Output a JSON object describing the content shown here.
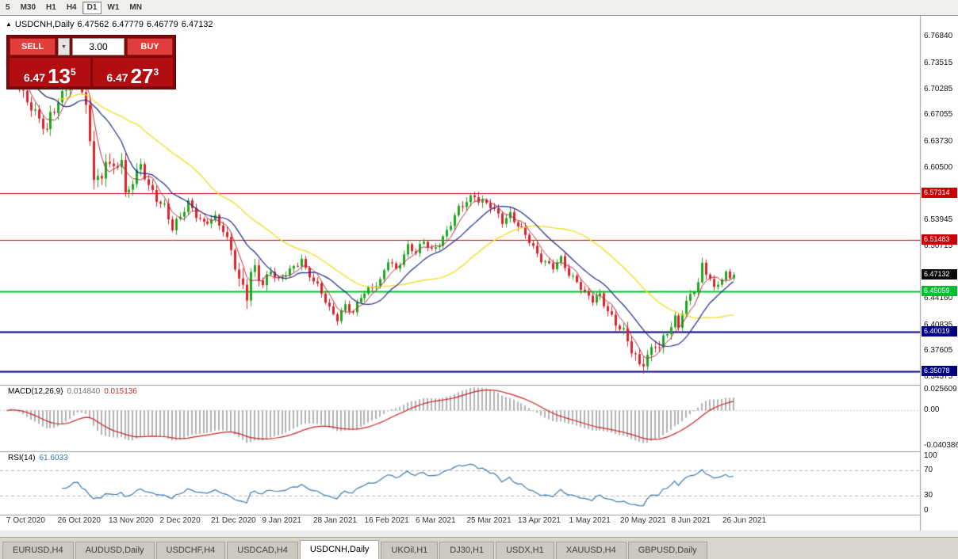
{
  "toolbar": {
    "timeframes": [
      {
        "label": "5",
        "active": false
      },
      {
        "label": "M30",
        "active": false
      },
      {
        "label": "H1",
        "active": false
      },
      {
        "label": "H4",
        "active": false
      },
      {
        "label": "D1",
        "active": true
      },
      {
        "label": "W1",
        "active": false
      },
      {
        "label": "MN",
        "active": false
      }
    ]
  },
  "chart_header": {
    "collapse_icon": "▲",
    "symbol": "USDCNH,Daily",
    "open": "6.47562",
    "high": "6.47779",
    "low": "6.46779",
    "close": "6.47132"
  },
  "trade_panel": {
    "sell_label": "SELL",
    "buy_label": "BUY",
    "volume": "3.00",
    "caret_icon": "▼",
    "sell_price": {
      "big": "6.47",
      "pips": "13",
      "pip_sup": "5"
    },
    "buy_price": {
      "big": "6.47",
      "pips": "27",
      "pip_sup": "3"
    }
  },
  "indicators": {
    "macd": {
      "name": "MACD(12,26,9)",
      "value_main": "0.014840",
      "value_signal": "0.015136",
      "axis_ticks": [
        "0.025609",
        "0.00",
        "-0.040386"
      ],
      "axis_values": [
        0.025609,
        0,
        -0.040386
      ]
    },
    "rsi": {
      "name": "RSI(14)",
      "value": "61.6033",
      "axis_ticks": [
        "100",
        "70",
        "30",
        "0"
      ],
      "axis_values": [
        100,
        70,
        30,
        0
      ],
      "dashed_levels": [
        70,
        30
      ]
    }
  },
  "price_axis": {
    "range": {
      "top": 6.7727,
      "bottom": 6.3359
    },
    "ticks": [
      "6.76840",
      "6.73515",
      "6.70285",
      "6.67055",
      "6.63730",
      "6.60500",
      "6.57270",
      "6.53945",
      "6.50715",
      "6.44160",
      "6.40835",
      "6.37605",
      "6.34375"
    ],
    "current_price": {
      "label": "6.47132",
      "value": 6.47132,
      "bg": "#0a0a0a"
    },
    "levels": [
      {
        "label": "6.57314",
        "value": 6.57314,
        "color": "#cc0000",
        "width": 1
      },
      {
        "label": "6.51483",
        "value": 6.51483,
        "color": "#cc0000",
        "width": 1
      },
      {
        "label": "6.45059",
        "value": 6.45059,
        "color": "#00bf2f",
        "width": 2
      },
      {
        "label": "6.40019",
        "value": 6.40019,
        "color": "#000082",
        "width": 2
      },
      {
        "label": "6.35078",
        "value": 6.35078,
        "color": "#000082",
        "width": 2
      }
    ]
  },
  "x_axis": {
    "labels": [
      "7 Oct 2020",
      "26 Oct 2020",
      "13 Nov 2020",
      "2 Dec 2020",
      "21 Dec 2020",
      "9 Jan 2021",
      "28 Jan 2021",
      "16 Feb 2021",
      "6 Mar 2021",
      "25 Mar 2021",
      "13 Apr 2021",
      "1 May 2021",
      "20 May 2021",
      "8 Jun 2021",
      "26 Jun 2021"
    ]
  },
  "tabs": [
    {
      "label": "EURUSD,H4",
      "active": false
    },
    {
      "label": "AUDUSD,Daily",
      "active": false
    },
    {
      "label": "USDCHF,H4",
      "active": false
    },
    {
      "label": "USDCAD,H4",
      "active": false
    },
    {
      "label": "USDCNH,Daily",
      "active": true
    },
    {
      "label": "UKOil,H1",
      "active": false
    },
    {
      "label": "DJ30,H1",
      "active": false
    },
    {
      "label": "USDX,H1",
      "active": false
    },
    {
      "label": "XAUUSD,H4",
      "active": false
    },
    {
      "label": "GBPUSD,Daily",
      "active": false
    }
  ],
  "chart_data": {
    "type": "candlestick",
    "symbol": "USDCNH",
    "timeframe": "Daily",
    "candles_count": 186,
    "final_close": 6.47132,
    "close_path": [
      [
        0,
        6.728
      ],
      [
        1,
        6.748
      ],
      [
        3,
        6.708
      ],
      [
        5,
        6.69
      ],
      [
        8,
        6.662
      ],
      [
        10,
        6.65
      ],
      [
        11,
        6.672
      ],
      [
        13,
        6.69
      ],
      [
        16,
        6.712
      ],
      [
        18,
        6.728
      ],
      [
        20,
        6.68
      ],
      [
        21,
        6.64
      ],
      [
        22,
        6.602
      ],
      [
        24,
        6.585
      ],
      [
        25,
        6.615
      ],
      [
        27,
        6.598
      ],
      [
        29,
        6.62
      ],
      [
        30,
        6.572
      ],
      [
        32,
        6.59
      ],
      [
        34,
        6.605
      ],
      [
        36,
        6.58
      ],
      [
        38,
        6.568
      ],
      [
        40,
        6.558
      ],
      [
        42,
        6.528
      ],
      [
        44,
        6.542
      ],
      [
        46,
        6.562
      ],
      [
        48,
        6.548
      ],
      [
        50,
        6.535
      ],
      [
        53,
        6.54
      ],
      [
        55,
        6.528
      ],
      [
        57,
        6.505
      ],
      [
        59,
        6.462
      ],
      [
        61,
        6.442
      ],
      [
        62,
        6.47
      ],
      [
        63,
        6.478
      ],
      [
        65,
        6.462
      ],
      [
        67,
        6.478
      ],
      [
        69,
        6.462
      ],
      [
        71,
        6.472
      ],
      [
        73,
        6.482
      ],
      [
        75,
        6.492
      ],
      [
        76,
        6.478
      ],
      [
        78,
        6.462
      ],
      [
        80,
        6.448
      ],
      [
        82,
        6.43
      ],
      [
        84,
        6.418
      ],
      [
        86,
        6.432
      ],
      [
        88,
        6.422
      ],
      [
        90,
        6.445
      ],
      [
        92,
        6.455
      ],
      [
        95,
        6.462
      ],
      [
        97,
        6.488
      ],
      [
        99,
        6.478
      ],
      [
        102,
        6.508
      ],
      [
        104,
        6.498
      ],
      [
        106,
        6.512
      ],
      [
        108,
        6.502
      ],
      [
        110,
        6.512
      ],
      [
        112,
        6.525
      ],
      [
        115,
        6.552
      ],
      [
        117,
        6.565
      ],
      [
        119,
        6.572
      ],
      [
        121,
        6.56
      ],
      [
        123,
        6.556
      ],
      [
        126,
        6.54
      ],
      [
        128,
        6.548
      ],
      [
        130,
        6.532
      ],
      [
        132,
        6.52
      ],
      [
        134,
        6.505
      ],
      [
        136,
        6.492
      ],
      [
        139,
        6.48
      ],
      [
        141,
        6.49
      ],
      [
        143,
        6.472
      ],
      [
        145,
        6.465
      ],
      [
        147,
        6.448
      ],
      [
        149,
        6.438
      ],
      [
        151,
        6.445
      ],
      [
        153,
        6.428
      ],
      [
        155,
        6.412
      ],
      [
        157,
        6.398
      ],
      [
        159,
        6.375
      ],
      [
        161,
        6.36
      ],
      [
        163,
        6.372
      ],
      [
        165,
        6.385
      ],
      [
        166,
        6.378
      ],
      [
        168,
        6.398
      ],
      [
        170,
        6.418
      ],
      [
        171,
        6.408
      ],
      [
        172,
        6.428
      ],
      [
        174,
        6.445
      ],
      [
        176,
        6.458
      ],
      [
        177,
        6.482
      ],
      [
        179,
        6.468
      ],
      [
        180,
        6.455
      ],
      [
        181,
        6.462
      ],
      [
        183,
        6.472
      ],
      [
        184,
        6.466
      ],
      [
        185,
        6.47132
      ]
    ],
    "volatility_path": [
      [
        0,
        0.013
      ],
      [
        8,
        0.01
      ],
      [
        18,
        0.012
      ],
      [
        22,
        0.016
      ],
      [
        30,
        0.011
      ],
      [
        40,
        0.008
      ],
      [
        50,
        0.007
      ],
      [
        58,
        0.009
      ],
      [
        60,
        0.016
      ],
      [
        63,
        0.011
      ],
      [
        70,
        0.006
      ],
      [
        80,
        0.007
      ],
      [
        90,
        0.006
      ],
      [
        100,
        0.006
      ],
      [
        110,
        0.006
      ],
      [
        119,
        0.009
      ],
      [
        130,
        0.007
      ],
      [
        140,
        0.006
      ],
      [
        150,
        0.007
      ],
      [
        159,
        0.01
      ],
      [
        163,
        0.012
      ],
      [
        170,
        0.008
      ],
      [
        177,
        0.008
      ],
      [
        185,
        0.004
      ]
    ],
    "ma_periods": {
      "fast_red": 5,
      "mid_blue": 13,
      "slow_yellow": 34
    },
    "macd_params": {
      "fast": 12,
      "slow": 26,
      "signal": 9
    },
    "rsi_period": 14,
    "colors": {
      "bull": "#1fa51f",
      "bear": "#d9232a",
      "ma_fast": "#b03040",
      "ma_mid": "#1d2a8f",
      "ma_slow": "#efe02e",
      "macd_hist": "#b2b2b2",
      "macd_signal": "#cc2222",
      "rsi_line": "#3c78b4",
      "grid": "#c8c8c8",
      "divider": "#9a9a9a",
      "axis_line": "#9a9a9a"
    }
  }
}
